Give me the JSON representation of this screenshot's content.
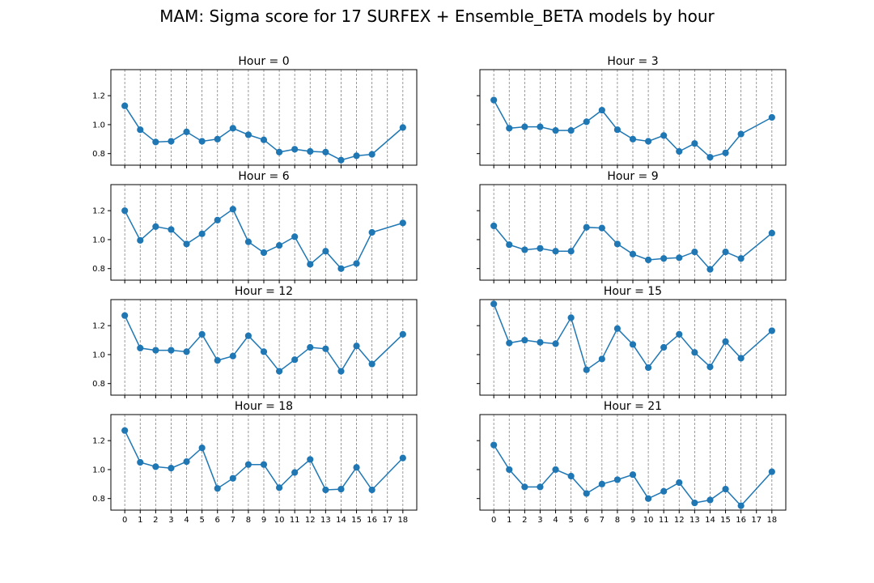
{
  "figure": {
    "title": "MAM: Sigma score for 17 SURFEX + Ensemble_BETA models by hour",
    "line_color": "#1f77b4"
  },
  "chart_data": [
    {
      "type": "line",
      "title": "Hour = 0",
      "x": [
        0,
        1,
        2,
        3,
        4,
        5,
        6,
        7,
        8,
        9,
        10,
        11,
        12,
        13,
        14,
        15,
        16,
        18
      ],
      "y": [
        1.13,
        0.965,
        0.88,
        0.885,
        0.95,
        0.885,
        0.9,
        0.975,
        0.93,
        0.895,
        0.81,
        0.83,
        0.815,
        0.81,
        0.755,
        0.785,
        0.795,
        0.98
      ],
      "xticks": [
        "0",
        "1",
        "2",
        "3",
        "4",
        "5",
        "6",
        "7",
        "8",
        "9",
        "10",
        "11",
        "12",
        "13",
        "14",
        "15",
        "16",
        "17",
        "18"
      ],
      "yticks": [
        "0.8",
        "1.0",
        "1.2"
      ],
      "ylim": [
        0.72,
        1.38
      ],
      "vertical_grid": true
    },
    {
      "type": "line",
      "title": "Hour = 3",
      "x": [
        0,
        1,
        2,
        3,
        4,
        5,
        6,
        7,
        8,
        9,
        10,
        11,
        12,
        13,
        14,
        15,
        16,
        18
      ],
      "y": [
        1.17,
        0.975,
        0.985,
        0.985,
        0.96,
        0.96,
        1.02,
        1.1,
        0.965,
        0.9,
        0.885,
        0.925,
        0.815,
        0.87,
        0.775,
        0.805,
        0.935,
        1.05
      ],
      "xticks": [
        "0",
        "1",
        "2",
        "3",
        "4",
        "5",
        "6",
        "7",
        "8",
        "9",
        "10",
        "11",
        "12",
        "13",
        "14",
        "15",
        "16",
        "17",
        "18"
      ],
      "yticks": [
        "0.8",
        "1.0",
        "1.2"
      ],
      "ylim": [
        0.72,
        1.38
      ],
      "vertical_grid": true
    },
    {
      "type": "line",
      "title": "Hour = 6",
      "x": [
        0,
        1,
        2,
        3,
        4,
        5,
        6,
        7,
        8,
        9,
        10,
        11,
        12,
        13,
        14,
        15,
        16,
        18
      ],
      "y": [
        1.2,
        0.995,
        1.09,
        1.07,
        0.97,
        1.04,
        1.135,
        1.21,
        0.985,
        0.91,
        0.96,
        1.02,
        0.83,
        0.92,
        0.8,
        0.835,
        1.05,
        1.115
      ],
      "xticks": [
        "0",
        "1",
        "2",
        "3",
        "4",
        "5",
        "6",
        "7",
        "8",
        "9",
        "10",
        "11",
        "12",
        "13",
        "14",
        "15",
        "16",
        "17",
        "18"
      ],
      "yticks": [
        "0.8",
        "1.0",
        "1.2"
      ],
      "ylim": [
        0.72,
        1.38
      ],
      "vertical_grid": true
    },
    {
      "type": "line",
      "title": "Hour = 9",
      "x": [
        0,
        1,
        2,
        3,
        4,
        5,
        6,
        7,
        8,
        9,
        10,
        11,
        12,
        13,
        14,
        15,
        16,
        18
      ],
      "y": [
        1.095,
        0.965,
        0.93,
        0.94,
        0.92,
        0.92,
        1.085,
        1.08,
        0.97,
        0.9,
        0.86,
        0.87,
        0.875,
        0.915,
        0.795,
        0.915,
        0.87,
        1.045
      ],
      "xticks": [
        "0",
        "1",
        "2",
        "3",
        "4",
        "5",
        "6",
        "7",
        "8",
        "9",
        "10",
        "11",
        "12",
        "13",
        "14",
        "15",
        "16",
        "17",
        "18"
      ],
      "yticks": [
        "0.8",
        "1.0",
        "1.2"
      ],
      "ylim": [
        0.72,
        1.38
      ],
      "vertical_grid": true
    },
    {
      "type": "line",
      "title": "Hour = 12",
      "x": [
        0,
        1,
        2,
        3,
        4,
        5,
        6,
        7,
        8,
        9,
        10,
        11,
        12,
        13,
        14,
        15,
        16,
        18
      ],
      "y": [
        1.27,
        1.045,
        1.03,
        1.03,
        1.02,
        1.14,
        0.96,
        0.99,
        1.13,
        1.02,
        0.885,
        0.965,
        1.05,
        1.04,
        0.885,
        1.06,
        0.935,
        1.14
      ],
      "xticks": [
        "0",
        "1",
        "2",
        "3",
        "4",
        "5",
        "6",
        "7",
        "8",
        "9",
        "10",
        "11",
        "12",
        "13",
        "14",
        "15",
        "16",
        "17",
        "18"
      ],
      "yticks": [
        "0.8",
        "1.0",
        "1.2"
      ],
      "ylim": [
        0.72,
        1.38
      ],
      "vertical_grid": true
    },
    {
      "type": "line",
      "title": "Hour = 15",
      "x": [
        0,
        1,
        2,
        3,
        4,
        5,
        6,
        7,
        8,
        9,
        10,
        11,
        12,
        13,
        14,
        15,
        16,
        18
      ],
      "y": [
        1.35,
        1.08,
        1.1,
        1.085,
        1.075,
        1.255,
        0.895,
        0.97,
        1.18,
        1.07,
        0.91,
        1.05,
        1.14,
        1.015,
        0.915,
        1.09,
        0.975,
        1.165
      ],
      "xticks": [
        "0",
        "1",
        "2",
        "3",
        "4",
        "5",
        "6",
        "7",
        "8",
        "9",
        "10",
        "11",
        "12",
        "13",
        "14",
        "15",
        "16",
        "17",
        "18"
      ],
      "yticks": [
        "0.8",
        "1.0",
        "1.2"
      ],
      "ylim": [
        0.72,
        1.38
      ],
      "vertical_grid": true
    },
    {
      "type": "line",
      "title": "Hour = 18",
      "x": [
        0,
        1,
        2,
        3,
        4,
        5,
        6,
        7,
        8,
        9,
        10,
        11,
        12,
        13,
        14,
        15,
        16,
        18
      ],
      "y": [
        1.27,
        1.05,
        1.02,
        1.01,
        1.055,
        1.15,
        0.87,
        0.94,
        1.035,
        1.035,
        0.875,
        0.98,
        1.07,
        0.86,
        0.865,
        1.015,
        0.86,
        1.08
      ],
      "xticks": [
        "0",
        "1",
        "2",
        "3",
        "4",
        "5",
        "6",
        "7",
        "8",
        "9",
        "10",
        "11",
        "12",
        "13",
        "14",
        "15",
        "16",
        "17",
        "18"
      ],
      "yticks": [
        "0.8",
        "1.0",
        "1.2"
      ],
      "ylim": [
        0.72,
        1.38
      ],
      "vertical_grid": true
    },
    {
      "type": "line",
      "title": "Hour = 21",
      "x": [
        0,
        1,
        2,
        3,
        4,
        5,
        6,
        7,
        8,
        9,
        10,
        11,
        12,
        13,
        14,
        15,
        16,
        18
      ],
      "y": [
        1.17,
        1.0,
        0.88,
        0.88,
        1.0,
        0.955,
        0.835,
        0.9,
        0.93,
        0.965,
        0.8,
        0.85,
        0.91,
        0.77,
        0.79,
        0.865,
        0.75,
        0.985
      ],
      "xticks": [
        "0",
        "1",
        "2",
        "3",
        "4",
        "5",
        "6",
        "7",
        "8",
        "9",
        "10",
        "11",
        "12",
        "13",
        "14",
        "15",
        "16",
        "17",
        "18"
      ],
      "yticks": [
        "0.8",
        "1.0",
        "1.2"
      ],
      "ylim": [
        0.72,
        1.38
      ],
      "vertical_grid": true
    }
  ]
}
